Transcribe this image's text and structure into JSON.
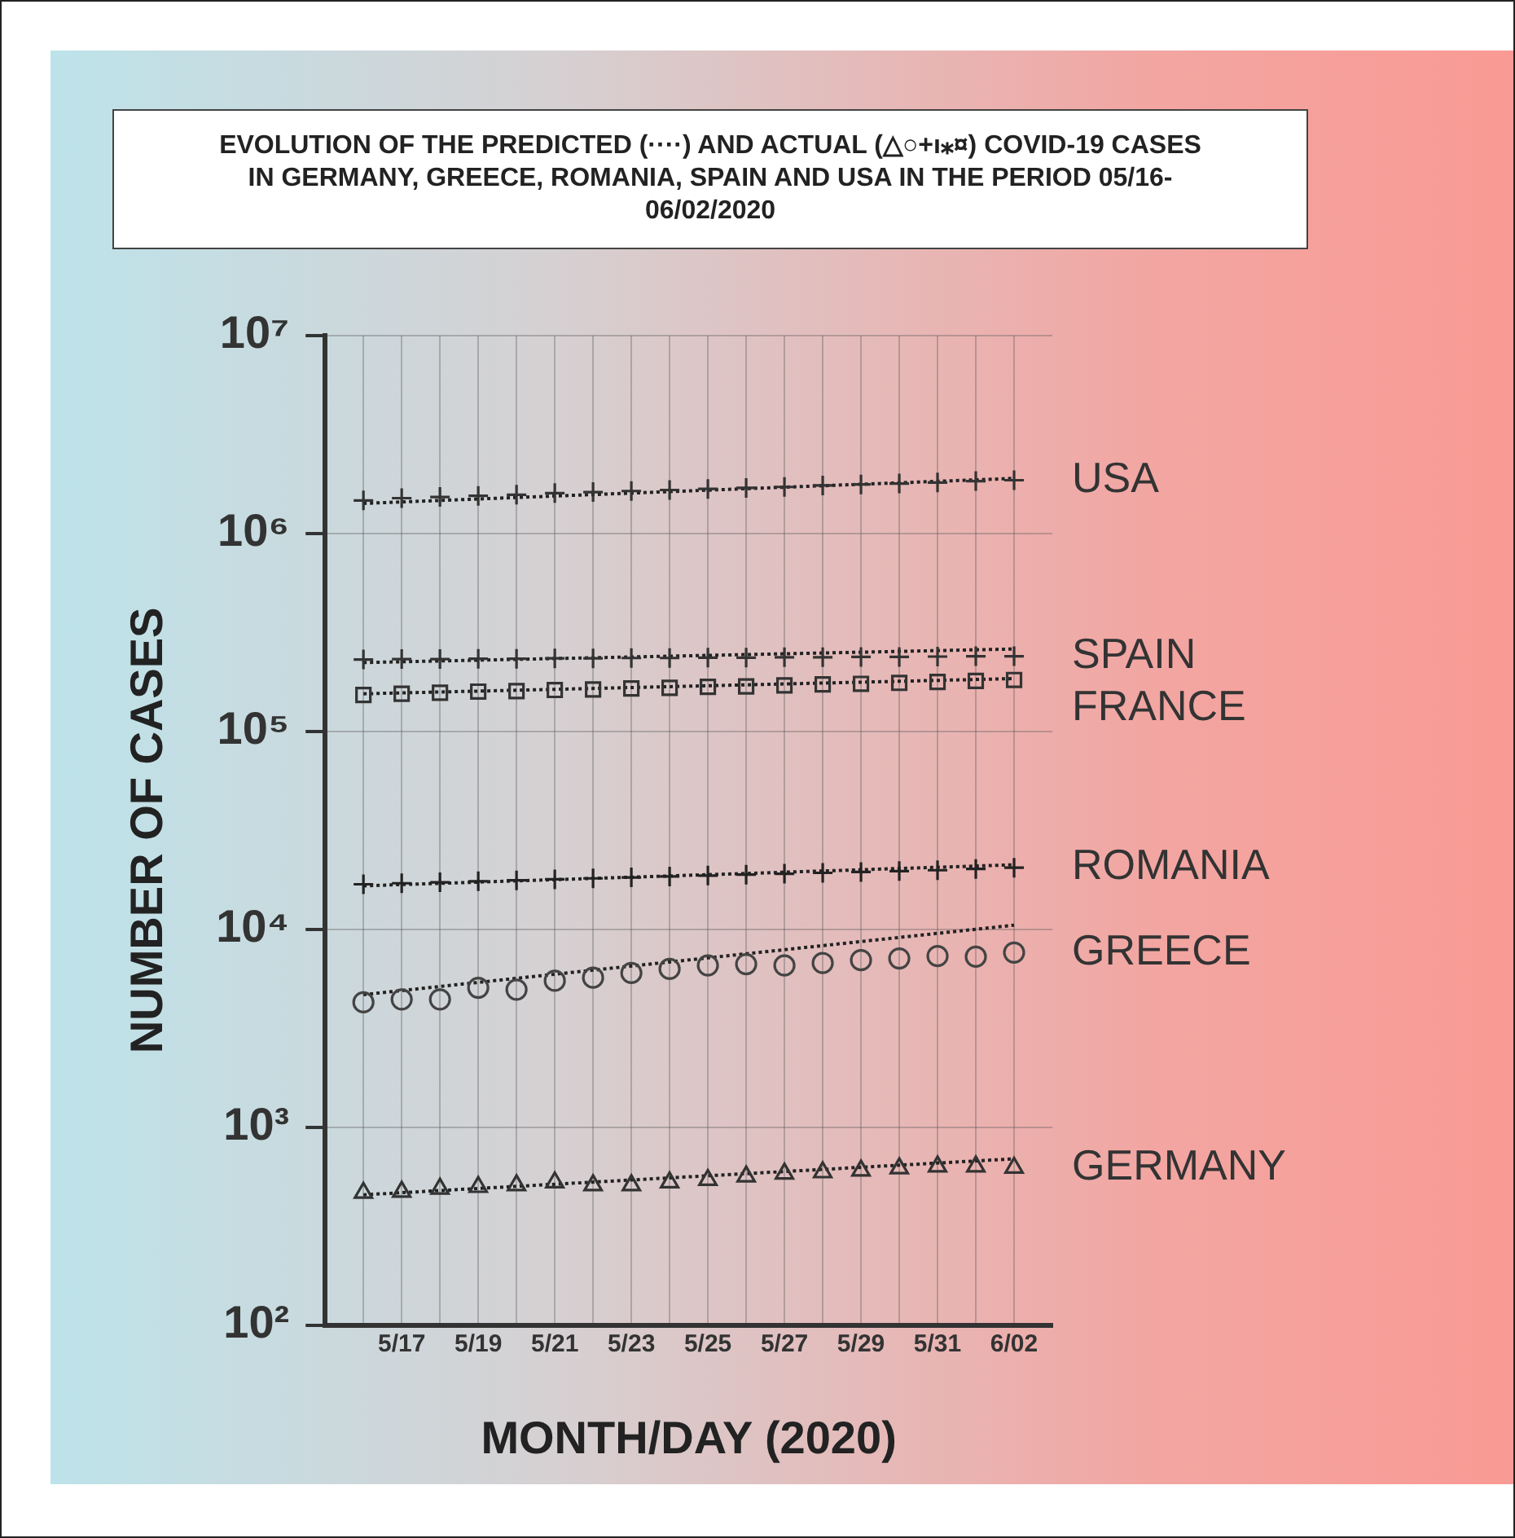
{
  "chart_data": {
    "type": "scatter",
    "title": "EVOLUTION OF THE PREDICTED (····) AND ACTUAL (△○+ı⁎¤) COVID-19 CASES IN GERMANY, GREECE, ROMANIA, SPAIN AND USA IN THE PERIOD 05/16-06/02/2020",
    "xlabel": "MONTH/DAY (2020)",
    "ylabel": "NUMBER OF CASES",
    "x": [
      "--05-16",
      "--05-17",
      "--05-18",
      "--05-19",
      "--05-20",
      "--05-21",
      "--05-22",
      "--05-23",
      "--05-24",
      "--05-25",
      "--05-26",
      "--05-27",
      "--05-28",
      "--05-29",
      "--05-30",
      "--05-31",
      "--06-01",
      "--06-02"
    ],
    "series": [
      {
        "name": "USA",
        "marker": "cross",
        "color": "#333333",
        "values": [
          1470000,
          1510000,
          1530000,
          1550000,
          1570000,
          1600000,
          1620000,
          1640000,
          1660000,
          1680000,
          1700000,
          1720000,
          1750000,
          1770000,
          1790000,
          1810000,
          1840000,
          1860000
        ]
      },
      {
        "type": "line",
        "marker": "none",
        "line_style": "dotted",
        "color": "#222222",
        "x": [
          "--05-16",
          "--06-02"
        ],
        "values": [
          1420000,
          1900000
        ]
      },
      {
        "name": "SPAIN",
        "marker": "cross",
        "color": "#333333",
        "values": [
          231000,
          232000,
          232000,
          233000,
          233000,
          234000,
          234000,
          235000,
          235000,
          236000,
          236000,
          237000,
          237000,
          238000,
          238000,
          239000,
          240000,
          240000
        ]
      },
      {
        "type": "line",
        "marker": "none",
        "line_style": "dotted",
        "color": "#222222",
        "x": [
          "--05-16",
          "--06-02"
        ],
        "values": [
          223000,
          261000
        ]
      },
      {
        "name": "FRANCE",
        "marker": "square",
        "color": "#333333",
        "values": [
          153000,
          155000,
          157000,
          159000,
          160000,
          162000,
          163000,
          165000,
          166000,
          168000,
          169000,
          171000,
          173000,
          174000,
          176000,
          178000,
          180000,
          182000
        ]
      },
      {
        "type": "line",
        "marker": "none",
        "line_style": "dotted",
        "color": "#222222",
        "x": [
          "--05-16",
          "--06-02"
        ],
        "values": [
          155000,
          185000
        ]
      },
      {
        "name": "ROMANIA",
        "marker": "cross",
        "color": "#222222",
        "values": [
          16900,
          17100,
          17300,
          17500,
          17700,
          17900,
          18100,
          18300,
          18500,
          18700,
          18900,
          19100,
          19300,
          19500,
          19700,
          19900,
          20200,
          20500
        ]
      },
      {
        "type": "line",
        "marker": "none",
        "line_style": "dotted",
        "color": "#222222",
        "x": [
          "--05-16",
          "--06-02"
        ],
        "values": [
          16600,
          21200
        ]
      },
      {
        "name": "GREECE",
        "marker": "circle",
        "color": "#444444",
        "values": [
          4280,
          4430,
          4430,
          5070,
          4960,
          5500,
          5700,
          6020,
          6310,
          6580,
          6670,
          6580,
          6760,
          6990,
          7130,
          7330,
          7280,
          7640
        ]
      },
      {
        "type": "line",
        "marker": "none",
        "line_style": "dotted",
        "color": "#222222",
        "x": [
          "--05-16",
          "--06-02"
        ],
        "values": [
          4680,
          10500
        ]
      },
      {
        "name": "GERMANY",
        "marker": "triangle",
        "color": "#333333",
        "values": [
          467,
          473,
          490,
          500,
          510,
          527,
          510,
          510,
          527,
          542,
          565,
          584,
          593,
          605,
          621,
          634,
          634,
          625
        ]
      },
      {
        "type": "line",
        "marker": "none",
        "line_style": "dotted",
        "color": "#222222",
        "x": [
          "--05-16",
          "--06-02"
        ],
        "values": [
          456,
          693
        ]
      }
    ],
    "log": "y",
    "ylim": [
      100,
      10000000
    ],
    "yticks": [
      {
        "value": 100,
        "label": "10²"
      },
      {
        "value": 1000,
        "label": "10³"
      },
      {
        "value": 10000,
        "label": "10⁴"
      },
      {
        "value": 100000,
        "label": "10⁵"
      },
      {
        "value": 1000000,
        "label": "10⁶"
      },
      {
        "value": 10000000,
        "label": "10⁷"
      }
    ],
    "xlim": [
      "--05-15",
      "--06-03"
    ],
    "xticks": [
      {
        "value": "--05-16",
        "label": null
      },
      {
        "value": "--05-17",
        "label": "5/17"
      },
      {
        "value": "--05-18",
        "label": null
      },
      {
        "value": "--05-19",
        "label": "5/19"
      },
      {
        "value": "--05-20",
        "label": null
      },
      {
        "value": "--05-21",
        "label": "5/21"
      },
      {
        "value": "--05-22",
        "label": null
      },
      {
        "value": "--05-23",
        "label": "5/23"
      },
      {
        "value": "--05-24",
        "label": null
      },
      {
        "value": "--05-25",
        "label": "5/25"
      },
      {
        "value": "--05-26",
        "label": null
      },
      {
        "value": "--05-27",
        "label": "5/27"
      },
      {
        "value": "--05-28",
        "label": null
      },
      {
        "value": "--05-29",
        "label": "5/29"
      },
      {
        "value": "--05-30",
        "label": null
      },
      {
        "value": "--05-31",
        "label": "5/31"
      },
      {
        "value": "--06-01",
        "label": null
      },
      {
        "value": "--06-02",
        "label": "6/02"
      }
    ],
    "grid": true,
    "legend": false
  }
}
